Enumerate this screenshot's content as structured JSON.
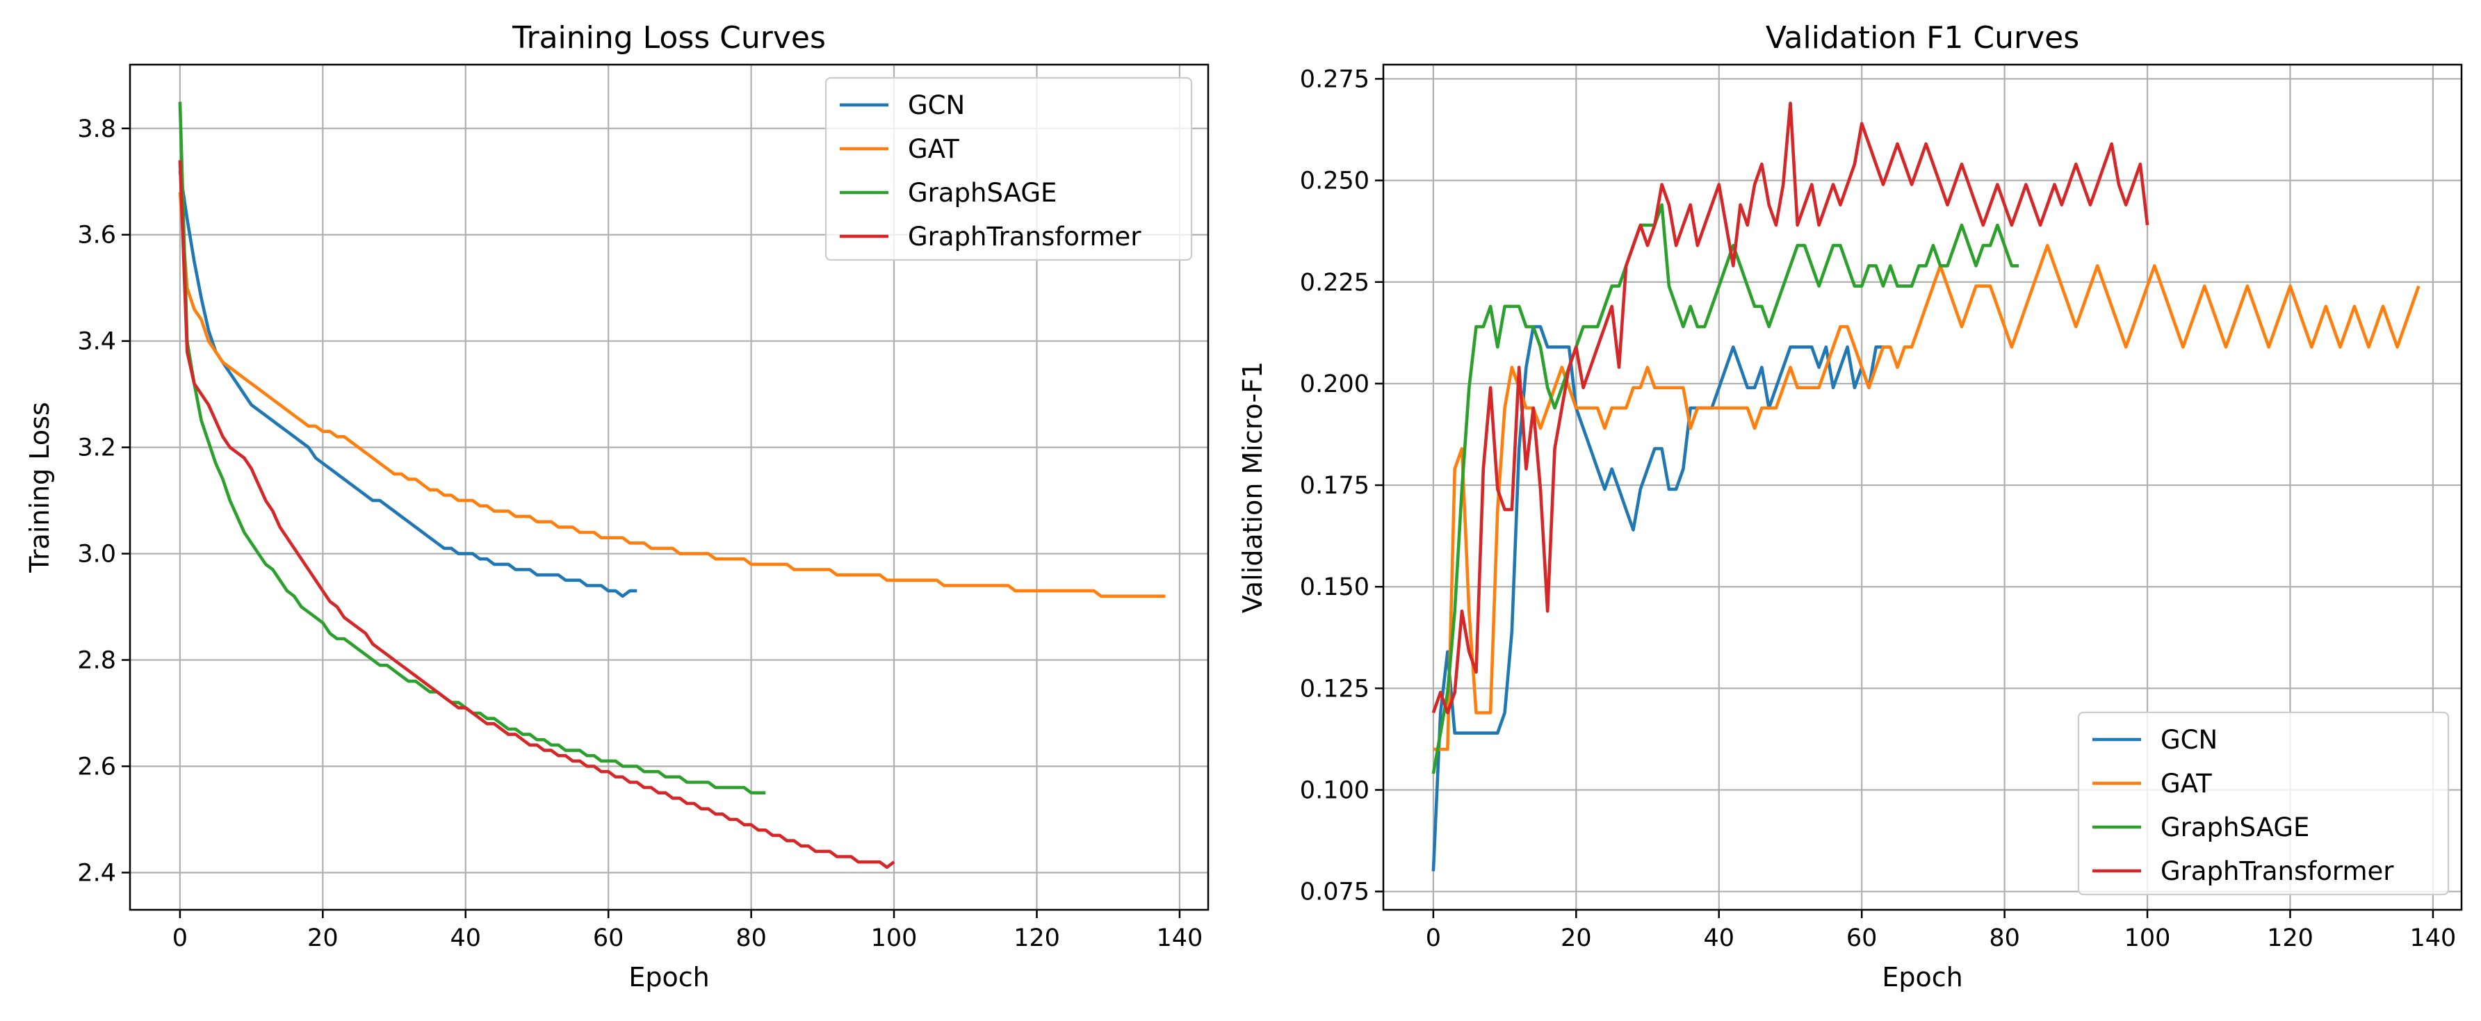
{
  "chart_data": [
    {
      "type": "line",
      "title": "Training Loss Curves",
      "xlabel": "Epoch",
      "ylabel": "Training Loss",
      "xlim": [
        -7,
        144
      ],
      "ylim": [
        2.33,
        3.92
      ],
      "xticks": [
        0,
        20,
        40,
        60,
        80,
        100,
        120,
        140
      ],
      "yticks": [
        2.4,
        2.6,
        2.8,
        3.0,
        3.2,
        3.4,
        3.6,
        3.8
      ],
      "ytick_decimals": 1,
      "grid": true,
      "legend_position": "upper right",
      "series": [
        {
          "name": "GCN",
          "color": "#1f77b4",
          "values": [
            3.72,
            3.63,
            3.55,
            3.48,
            3.42,
            3.38,
            3.36,
            3.34,
            3.32,
            3.3,
            3.28,
            3.27,
            3.26,
            3.25,
            3.24,
            3.23,
            3.22,
            3.21,
            3.2,
            3.18,
            3.17,
            3.16,
            3.15,
            3.14,
            3.13,
            3.12,
            3.11,
            3.1,
            3.1,
            3.09,
            3.08,
            3.07,
            3.06,
            3.05,
            3.04,
            3.03,
            3.02,
            3.01,
            3.01,
            3.0,
            3.0,
            3.0,
            2.99,
            2.99,
            2.98,
            2.98,
            2.98,
            2.97,
            2.97,
            2.97,
            2.96,
            2.96,
            2.96,
            2.96,
            2.95,
            2.95,
            2.95,
            2.94,
            2.94,
            2.94,
            2.93,
            2.93,
            2.92,
            2.93,
            2.93
          ]
        },
        {
          "name": "GAT",
          "color": "#ff7f0e",
          "values": [
            3.68,
            3.5,
            3.46,
            3.44,
            3.4,
            3.38,
            3.36,
            3.35,
            3.34,
            3.33,
            3.32,
            3.31,
            3.3,
            3.29,
            3.28,
            3.27,
            3.26,
            3.25,
            3.24,
            3.24,
            3.23,
            3.23,
            3.22,
            3.22,
            3.21,
            3.2,
            3.19,
            3.18,
            3.17,
            3.16,
            3.15,
            3.15,
            3.14,
            3.14,
            3.13,
            3.12,
            3.12,
            3.11,
            3.11,
            3.1,
            3.1,
            3.1,
            3.09,
            3.09,
            3.08,
            3.08,
            3.08,
            3.07,
            3.07,
            3.07,
            3.06,
            3.06,
            3.06,
            3.05,
            3.05,
            3.05,
            3.04,
            3.04,
            3.04,
            3.03,
            3.03,
            3.03,
            3.03,
            3.02,
            3.02,
            3.02,
            3.01,
            3.01,
            3.01,
            3.01,
            3.0,
            3.0,
            3.0,
            3.0,
            3.0,
            2.99,
            2.99,
            2.99,
            2.99,
            2.99,
            2.98,
            2.98,
            2.98,
            2.98,
            2.98,
            2.98,
            2.97,
            2.97,
            2.97,
            2.97,
            2.97,
            2.97,
            2.96,
            2.96,
            2.96,
            2.96,
            2.96,
            2.96,
            2.96,
            2.95,
            2.95,
            2.95,
            2.95,
            2.95,
            2.95,
            2.95,
            2.95,
            2.94,
            2.94,
            2.94,
            2.94,
            2.94,
            2.94,
            2.94,
            2.94,
            2.94,
            2.94,
            2.93,
            2.93,
            2.93,
            2.93,
            2.93,
            2.93,
            2.93,
            2.93,
            2.93,
            2.93,
            2.93,
            2.93,
            2.92,
            2.92,
            2.92,
            2.92,
            2.92,
            2.92,
            2.92,
            2.92,
            2.92,
            2.92
          ]
        },
        {
          "name": "GraphSAGE",
          "color": "#2ca02c",
          "values": [
            3.85,
            3.4,
            3.32,
            3.25,
            3.21,
            3.17,
            3.14,
            3.1,
            3.07,
            3.04,
            3.02,
            3.0,
            2.98,
            2.97,
            2.95,
            2.93,
            2.92,
            2.9,
            2.89,
            2.88,
            2.87,
            2.85,
            2.84,
            2.84,
            2.83,
            2.82,
            2.81,
            2.8,
            2.79,
            2.79,
            2.78,
            2.77,
            2.76,
            2.76,
            2.75,
            2.74,
            2.74,
            2.73,
            2.72,
            2.72,
            2.71,
            2.7,
            2.7,
            2.69,
            2.69,
            2.68,
            2.67,
            2.67,
            2.66,
            2.66,
            2.65,
            2.65,
            2.64,
            2.64,
            2.63,
            2.63,
            2.63,
            2.62,
            2.62,
            2.61,
            2.61,
            2.61,
            2.6,
            2.6,
            2.6,
            2.59,
            2.59,
            2.59,
            2.58,
            2.58,
            2.58,
            2.57,
            2.57,
            2.57,
            2.57,
            2.56,
            2.56,
            2.56,
            2.56,
            2.56,
            2.55,
            2.55,
            2.55
          ]
        },
        {
          "name": "GraphTransformer",
          "color": "#d62728",
          "values": [
            3.74,
            3.38,
            3.32,
            3.3,
            3.28,
            3.25,
            3.22,
            3.2,
            3.19,
            3.18,
            3.16,
            3.13,
            3.1,
            3.08,
            3.05,
            3.03,
            3.01,
            2.99,
            2.97,
            2.95,
            2.93,
            2.91,
            2.9,
            2.88,
            2.87,
            2.86,
            2.85,
            2.83,
            2.82,
            2.81,
            2.8,
            2.79,
            2.78,
            2.77,
            2.76,
            2.75,
            2.74,
            2.73,
            2.72,
            2.71,
            2.71,
            2.7,
            2.69,
            2.68,
            2.68,
            2.67,
            2.66,
            2.66,
            2.65,
            2.64,
            2.64,
            2.63,
            2.63,
            2.62,
            2.62,
            2.61,
            2.61,
            2.6,
            2.6,
            2.59,
            2.59,
            2.58,
            2.58,
            2.57,
            2.57,
            2.56,
            2.56,
            2.55,
            2.55,
            2.54,
            2.54,
            2.53,
            2.53,
            2.52,
            2.52,
            2.51,
            2.51,
            2.5,
            2.5,
            2.49,
            2.49,
            2.48,
            2.48,
            2.47,
            2.47,
            2.46,
            2.46,
            2.45,
            2.45,
            2.44,
            2.44,
            2.44,
            2.43,
            2.43,
            2.43,
            2.42,
            2.42,
            2.42,
            2.42,
            2.41,
            2.42
          ]
        }
      ]
    },
    {
      "type": "line",
      "title": "Validation F1 Curves",
      "xlabel": "Epoch",
      "ylabel": "Validation Micro-F1",
      "xlim": [
        -7,
        144
      ],
      "ylim": [
        0.0705,
        0.2785
      ],
      "xticks": [
        0,
        20,
        40,
        60,
        80,
        100,
        120,
        140
      ],
      "yticks": [
        0.075,
        0.1,
        0.125,
        0.15,
        0.175,
        0.2,
        0.225,
        0.25,
        0.275
      ],
      "ytick_decimals": 3,
      "grid": true,
      "legend_position": "lower right",
      "series": [
        {
          "name": "GCN",
          "color": "#1f77b4",
          "values": [
            0.08,
            0.119,
            0.134,
            0.114,
            0.114,
            0.114,
            0.114,
            0.114,
            0.114,
            0.114,
            0.119,
            0.139,
            0.184,
            0.204,
            0.214,
            0.214,
            0.209,
            0.209,
            0.209,
            0.209,
            0.194,
            0.189,
            0.184,
            0.179,
            0.174,
            0.179,
            0.174,
            0.169,
            0.164,
            0.174,
            0.179,
            0.184,
            0.184,
            0.174,
            0.174,
            0.179,
            0.194,
            0.194,
            0.194,
            0.194,
            0.199,
            0.204,
            0.209,
            0.204,
            0.199,
            0.199,
            0.204,
            0.194,
            0.199,
            0.204,
            0.209,
            0.209,
            0.209,
            0.209,
            0.204,
            0.209,
            0.199,
            0.204,
            0.209,
            0.199,
            0.204,
            0.199,
            0.209,
            0.209,
            0.209
          ]
        },
        {
          "name": "GAT",
          "color": "#ff7f0e",
          "values": [
            0.11,
            0.11,
            0.11,
            0.179,
            0.184,
            0.144,
            0.119,
            0.119,
            0.119,
            0.169,
            0.194,
            0.204,
            0.199,
            0.194,
            0.194,
            0.189,
            0.194,
            0.199,
            0.204,
            0.199,
            0.194,
            0.194,
            0.194,
            0.194,
            0.189,
            0.194,
            0.194,
            0.194,
            0.199,
            0.199,
            0.204,
            0.199,
            0.199,
            0.199,
            0.199,
            0.199,
            0.189,
            0.194,
            0.194,
            0.194,
            0.194,
            0.194,
            0.194,
            0.194,
            0.194,
            0.189,
            0.194,
            0.194,
            0.194,
            0.199,
            0.204,
            0.199,
            0.199,
            0.199,
            0.199,
            0.204,
            0.209,
            0.214,
            0.214,
            0.209,
            0.204,
            0.199,
            0.204,
            0.209,
            0.209,
            0.204,
            0.209,
            0.209,
            0.214,
            0.219,
            0.224,
            0.229,
            0.224,
            0.219,
            0.214,
            0.219,
            0.224,
            0.224,
            0.224,
            0.219,
            0.214,
            0.209,
            0.214,
            0.219,
            0.224,
            0.229,
            0.234,
            0.229,
            0.224,
            0.219,
            0.214,
            0.219,
            0.224,
            0.229,
            0.224,
            0.219,
            0.214,
            0.209,
            0.214,
            0.219,
            0.224,
            0.229,
            0.224,
            0.219,
            0.214,
            0.209,
            0.214,
            0.219,
            0.224,
            0.219,
            0.214,
            0.209,
            0.214,
            0.219,
            0.224,
            0.219,
            0.214,
            0.209,
            0.214,
            0.219,
            0.224,
            0.219,
            0.214,
            0.209,
            0.214,
            0.219,
            0.214,
            0.209,
            0.214,
            0.219,
            0.214,
            0.209,
            0.214,
            0.219,
            0.214,
            0.209,
            0.214,
            0.219,
            0.224
          ]
        },
        {
          "name": "GraphSAGE",
          "color": "#2ca02c",
          "values": [
            0.104,
            0.114,
            0.124,
            0.144,
            0.174,
            0.199,
            0.214,
            0.214,
            0.219,
            0.209,
            0.219,
            0.219,
            0.219,
            0.214,
            0.214,
            0.209,
            0.199,
            0.194,
            0.199,
            0.204,
            0.209,
            0.214,
            0.214,
            0.214,
            0.219,
            0.224,
            0.224,
            0.229,
            0.234,
            0.239,
            0.239,
            0.239,
            0.244,
            0.224,
            0.219,
            0.214,
            0.219,
            0.214,
            0.214,
            0.219,
            0.224,
            0.229,
            0.234,
            0.229,
            0.224,
            0.219,
            0.219,
            0.214,
            0.219,
            0.224,
            0.229,
            0.234,
            0.234,
            0.229,
            0.224,
            0.229,
            0.234,
            0.234,
            0.229,
            0.224,
            0.224,
            0.229,
            0.229,
            0.224,
            0.229,
            0.224,
            0.224,
            0.224,
            0.229,
            0.229,
            0.234,
            0.229,
            0.229,
            0.234,
            0.239,
            0.234,
            0.229,
            0.234,
            0.234,
            0.239,
            0.234,
            0.229,
            0.229
          ]
        },
        {
          "name": "GraphTransformer",
          "color": "#d62728",
          "values": [
            0.119,
            0.124,
            0.119,
            0.124,
            0.144,
            0.134,
            0.129,
            0.179,
            0.199,
            0.174,
            0.169,
            0.169,
            0.204,
            0.179,
            0.194,
            0.174,
            0.144,
            0.184,
            0.194,
            0.204,
            0.209,
            0.199,
            0.204,
            0.209,
            0.214,
            0.219,
            0.204,
            0.229,
            0.234,
            0.239,
            0.234,
            0.239,
            0.249,
            0.244,
            0.234,
            0.239,
            0.244,
            0.234,
            0.239,
            0.244,
            0.249,
            0.239,
            0.229,
            0.244,
            0.239,
            0.249,
            0.254,
            0.244,
            0.239,
            0.249,
            0.269,
            0.239,
            0.244,
            0.249,
            0.239,
            0.244,
            0.249,
            0.244,
            0.249,
            0.254,
            0.264,
            0.259,
            0.254,
            0.249,
            0.254,
            0.259,
            0.254,
            0.249,
            0.254,
            0.259,
            0.254,
            0.249,
            0.244,
            0.249,
            0.254,
            0.249,
            0.244,
            0.239,
            0.244,
            0.249,
            0.244,
            0.239,
            0.244,
            0.249,
            0.244,
            0.239,
            0.244,
            0.249,
            0.244,
            0.249,
            0.254,
            0.249,
            0.244,
            0.249,
            0.254,
            0.259,
            0.249,
            0.244,
            0.249,
            0.254,
            0.239
          ]
        }
      ]
    }
  ]
}
